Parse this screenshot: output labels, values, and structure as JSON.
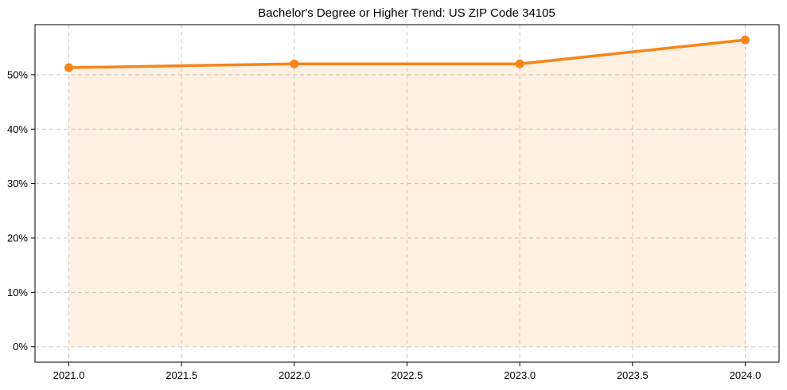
{
  "chart_data": {
    "type": "line",
    "title": "Bachelor's Degree or Higher Trend: US ZIP Code 34105",
    "x": [
      2021,
      2022,
      2023,
      2024
    ],
    "values": [
      51.3,
      52.0,
      52.0,
      56.4
    ],
    "x_tick_values": [
      2021.0,
      2021.5,
      2022.0,
      2022.5,
      2023.0,
      2023.5,
      2024.0
    ],
    "x_tick_labels": [
      "2021.0",
      "2021.5",
      "2022.0",
      "2022.5",
      "2023.0",
      "2023.5",
      "2024.0"
    ],
    "y_tick_values": [
      0,
      10,
      20,
      30,
      40,
      50
    ],
    "y_tick_labels": [
      "0%",
      "10%",
      "20%",
      "30%",
      "40%",
      "50%"
    ],
    "xlim": [
      2020.85,
      2024.15
    ],
    "ylim": [
      -2.82,
      59.2
    ],
    "xlabel": "",
    "ylabel": "",
    "grid": true,
    "grid_style": "dashed",
    "legend_position": "none",
    "area_baseline": 0,
    "marker": "circle",
    "colors": {
      "line": "#f5851a",
      "marker": "#f5851a",
      "area_fill": "rgba(245,133,26,0.12)",
      "grid": "#cccccc",
      "spine": "#000000",
      "text": "#000000",
      "background": "#ffffff"
    }
  }
}
